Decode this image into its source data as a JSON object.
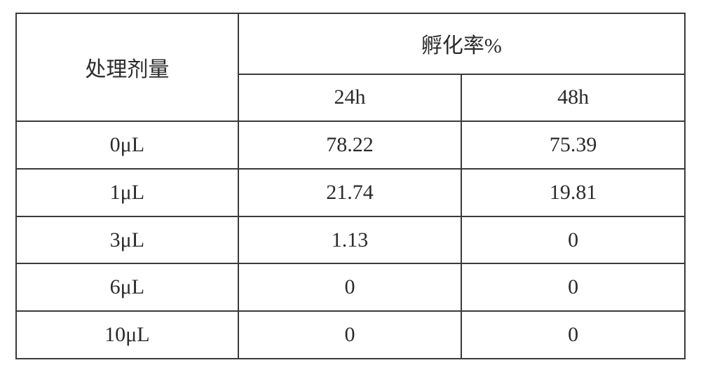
{
  "table": {
    "header": {
      "dose_label": "处理剂量",
      "rate_label": "孵化率%",
      "col_24h": "24h",
      "col_48h": "48h"
    },
    "rows": [
      {
        "dose": "0μL",
        "h24": "78.22",
        "h48": "75.39"
      },
      {
        "dose": "1μL",
        "h24": "21.74",
        "h48": "19.81"
      },
      {
        "dose": "3μL",
        "h24": "1.13",
        "h48": "0"
      },
      {
        "dose": "6μL",
        "h24": "0",
        "h48": "0"
      },
      {
        "dose": "10μL",
        "h24": "0",
        "h48": "0"
      }
    ],
    "border_color": "#3a3a3a",
    "text_color": "#2b2b2b",
    "background_color": "#ffffff",
    "font_family": "SimSun",
    "font_size_pt": 22
  }
}
